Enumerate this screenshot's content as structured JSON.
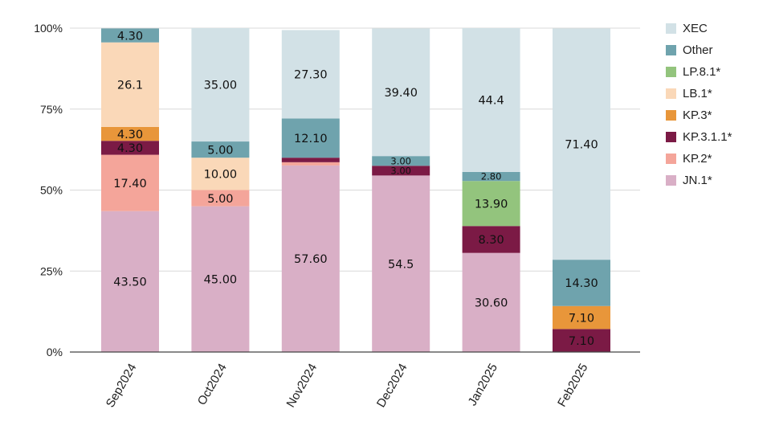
{
  "chart_data": {
    "type": "bar",
    "stacked": true,
    "percent": true,
    "categories": [
      "Sep2024",
      "Oct2024",
      "Nov2024",
      "Dec2024",
      "Jan2025",
      "Feb2025"
    ],
    "ylim": [
      0,
      100
    ],
    "yticks": [
      {
        "value": 0,
        "label": "0%"
      },
      {
        "value": 25,
        "label": "25%"
      },
      {
        "value": 50,
        "label": "50%"
      },
      {
        "value": 75,
        "label": "75%"
      },
      {
        "value": 100,
        "label": "100%"
      }
    ],
    "grid": true,
    "legend_position": "right",
    "series": [
      {
        "name": "JN.1*",
        "color": "#d9afc6",
        "values": [
          43.5,
          45.0,
          57.6,
          54.5,
          30.6,
          0
        ],
        "labels": [
          "43.50",
          "45.00",
          "57.60",
          "54.5",
          "30.60",
          ""
        ]
      },
      {
        "name": "KP.2*",
        "color": "#f4a59a",
        "values": [
          17.4,
          5.0,
          1.0,
          0,
          0,
          0
        ],
        "labels": [
          "17.40",
          "5.00",
          "",
          "",
          "",
          ""
        ]
      },
      {
        "name": "KP.3.1.1*",
        "color": "#7b1a45",
        "values": [
          4.3,
          0,
          1.4,
          3.0,
          8.3,
          7.1
        ],
        "labels": [
          "4.30",
          "",
          "",
          "3.00",
          "8.30",
          "7.10"
        ]
      },
      {
        "name": "KP.3*",
        "color": "#e8963a",
        "values": [
          4.3,
          0,
          0,
          0,
          0,
          7.1
        ],
        "labels": [
          "4.30",
          "",
          "",
          "",
          "",
          "7.10"
        ]
      },
      {
        "name": "LB.1*",
        "color": "#fad8b8",
        "values": [
          26.1,
          10.0,
          0,
          0,
          0,
          0
        ],
        "labels": [
          "26.1",
          "10.00",
          "",
          "",
          "",
          ""
        ]
      },
      {
        "name": "LP.8.1*",
        "color": "#93c47d",
        "values": [
          0,
          0,
          0,
          0,
          13.9,
          0
        ],
        "labels": [
          "",
          "",
          "",
          "",
          "13.90",
          ""
        ]
      },
      {
        "name": "Other",
        "color": "#6fa3ad",
        "values": [
          4.3,
          5.0,
          12.1,
          3.0,
          2.8,
          14.3
        ],
        "labels": [
          "4.30",
          "5.00",
          "12.10",
          "3.00",
          "2.80",
          "14.30"
        ]
      },
      {
        "name": "XEC",
        "color": "#d2e1e6",
        "values": [
          0,
          35.0,
          27.3,
          39.4,
          44.4,
          71.4
        ],
        "labels": [
          "",
          "35.00",
          "27.30",
          "39.40",
          "44.4",
          "71.40"
        ]
      }
    ],
    "legend_order": [
      "XEC",
      "Other",
      "LP.8.1*",
      "LB.1*",
      "KP.3*",
      "KP.3.1.1*",
      "KP.2*",
      "JN.1*"
    ]
  }
}
